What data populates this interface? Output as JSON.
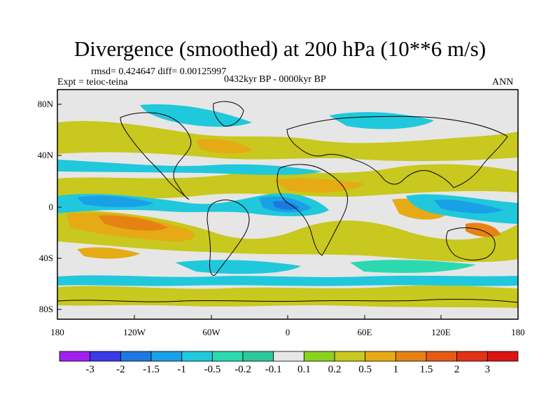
{
  "title": "Divergence (smoothed) at 200 hPa (10**6 m/s)",
  "stats": "rmsd= 0.424647 diff= 0.00125997",
  "experiment": "Expt = teioc-teina",
  "period": "0432kyr BP - 0000kyr BP",
  "season": "ANN",
  "y_axis_labels": [
    "80N",
    "40N",
    "0",
    "40S",
    "80S"
  ],
  "x_axis_labels": [
    "180",
    "120W",
    "60W",
    "0",
    "60E",
    "120E",
    "180"
  ],
  "colorbar": {
    "labels": [
      "-3",
      "-2",
      "-1.5",
      "-1",
      "-0.5",
      "-0.2",
      "-0.1",
      "0.1",
      "0.2",
      "0.5",
      "1",
      "1.5",
      "2",
      "3"
    ],
    "colors": [
      "#a020f0",
      "#3a3ae8",
      "#1e78e0",
      "#1aa0e6",
      "#20c8dc",
      "#2bd9b0",
      "#2ec89a",
      "#e6e6e6",
      "#8ad21e",
      "#c8c81e",
      "#e6aa14",
      "#e68214",
      "#e65a14",
      "#e03214",
      "#dc1414"
    ]
  },
  "colors": {
    "background": "#e6e6e6",
    "coast": "#000000"
  },
  "map_features": {
    "coastlines": "continents",
    "field": "divergence anomaly"
  }
}
